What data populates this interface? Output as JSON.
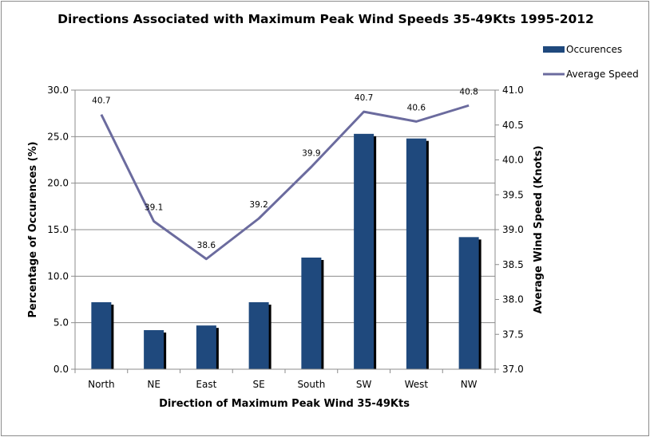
{
  "chart_data": {
    "type": "bar",
    "title": "Directions Associated with Maximum Peak Wind Speeds 35-49Kts 1995-2012",
    "xlabel": "Direction of Maximum Peak Wind 35-49Kts",
    "ylabel": "Percentage of Occurences (%)",
    "y2label": "Average Wind Speed (Knots)",
    "categories": [
      "North",
      "NE",
      "East",
      "SE",
      "South",
      "SW",
      "West",
      "NW"
    ],
    "ylim": [
      0,
      30
    ],
    "yticks": [
      "0.0",
      "5.0",
      "10.0",
      "15.0",
      "20.0",
      "25.0",
      "30.0"
    ],
    "y2lim": [
      37,
      41
    ],
    "y2ticks": [
      "37.0",
      "37.5",
      "38.0",
      "38.5",
      "39.0",
      "39.5",
      "40.0",
      "40.5",
      "41.0"
    ],
    "grid": true,
    "legend_position": "top-right",
    "series": [
      {
        "name": "Occurences",
        "type": "bar",
        "axis": "left",
        "color": "#1f497d",
        "values": [
          7.2,
          4.2,
          4.7,
          7.2,
          12.0,
          25.3,
          24.8,
          14.2
        ]
      },
      {
        "name": "Average Speed",
        "type": "line",
        "axis": "right",
        "color": "#6b6b9e",
        "values": [
          40.65,
          39.12,
          38.58,
          39.16,
          39.9,
          40.69,
          40.55,
          40.78
        ],
        "labels": [
          "40.7",
          "39.1",
          "38.6",
          "39.2",
          "39.9",
          "40.7",
          "40.6",
          "40.8"
        ]
      }
    ]
  }
}
